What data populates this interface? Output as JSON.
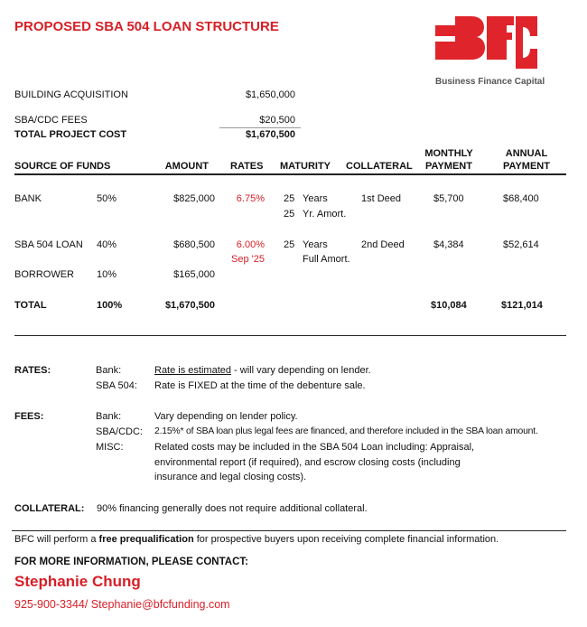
{
  "title": "PROPOSED SBA 504 LOAN STRUCTURE",
  "logo": {
    "letters": "BFC",
    "name": "Business Finance Capital",
    "color": "#e0242b"
  },
  "project": {
    "building_label": "BUILDING ACQUISITION",
    "building_value": "$1,650,000",
    "fees_label": "SBA/CDC FEES",
    "fees_value": "$20,500",
    "total_label": "TOTAL PROJECT COST",
    "total_value": "$1,670,500"
  },
  "table": {
    "headers": {
      "source": "SOURCE OF FUNDS",
      "amount": "AMOUNT",
      "rates": "RATES",
      "maturity": "MATURITY",
      "collateral": "COLLATERAL",
      "monthly_1": "MONTHLY",
      "monthly_2": "PAYMENT",
      "annual_1": "ANNUAL",
      "annual_2": "PAYMENT"
    },
    "rows": [
      {
        "source": "BANK",
        "pct": "50%",
        "amount": "$825,000",
        "rate": "6.75%",
        "rate_note": "",
        "mat_num": "25",
        "mat_unit": "Years",
        "mat2_num": "25",
        "mat2_text": "Yr. Amort.",
        "collateral": "1st Deed",
        "monthly": "$5,700",
        "annual": "$68,400"
      },
      {
        "source": "SBA 504 LOAN",
        "pct": "40%",
        "amount": "$680,500",
        "rate": "6.00%",
        "rate_note": "Sep '25",
        "mat_num": "25",
        "mat_unit": "Years",
        "mat2_num": "",
        "mat2_text": "Full Amort.",
        "collateral": "2nd Deed",
        "monthly": "$4,384",
        "annual": "$52,614"
      },
      {
        "source": "BORROWER",
        "pct": "10%",
        "amount": "$165,000"
      }
    ],
    "total": {
      "label": "TOTAL",
      "pct": "100%",
      "amount": "$1,670,500",
      "monthly": "$10,084",
      "annual": "$121,014"
    }
  },
  "notes": {
    "rates_label": "RATES:",
    "rates_bank_label": "Bank:",
    "rates_bank_link": "Rate is estimated",
    "rates_bank_text": " - will vary depending on lender.",
    "rates_sba_label": "SBA 504:",
    "rates_sba_text": "Rate is FIXED at the time of the debenture sale.",
    "fees_label": "FEES:",
    "fees_bank_label": "Bank:",
    "fees_bank_text": "Vary depending on lender policy.",
    "fees_sba_label": "SBA/CDC:",
    "fees_sba_text": "2.15%* of SBA loan plus legal fees are financed, and therefore included in the SBA loan amount.",
    "fees_misc_label": "MISC:",
    "fees_misc_1": "Related costs may be included in the SBA 504 Loan including: Appraisal,",
    "fees_misc_2": "environmental report (if required), and escrow closing costs (including",
    "fees_misc_3": "insurance and legal closing costs).",
    "collateral_label": "COLLATERAL:",
    "collateral_text": "90% financing generally does not require additional collateral."
  },
  "footer": {
    "pre": "BFC will perform a ",
    "bold": "free prequalification",
    "post": " for prospective buyers upon receiving complete financial information.",
    "contact_heading": "FOR MORE INFORMATION, PLEASE CONTACT:",
    "contact_name": "Stephanie Chung",
    "contact_phone": "925-900-3344/ ",
    "contact_email": "Stephanie@bfcfunding.com"
  }
}
